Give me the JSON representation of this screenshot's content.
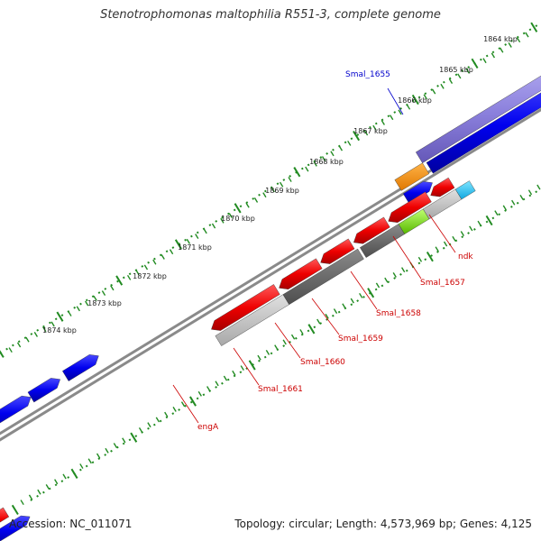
{
  "title": "Stenotrophomonas maltophilia R551-3, complete genome",
  "footer": {
    "accession_label": "Accession:",
    "accession": "NC_011071",
    "topology_label": "Topology:",
    "topology": "circular",
    "length_label": "Length:",
    "length": "4,573,969 bp",
    "genes_label": "Genes:",
    "genes": "4,125"
  },
  "colors": {
    "forward": "#0000ee",
    "reverse": "#ee0000",
    "label_forward": "#0000cc",
    "label_reverse": "#cc0000",
    "tick": "#228b22",
    "backbone": "#8a8a8a"
  },
  "tick_labels": [
    "1864 kbp",
    "1865 kbp",
    "1866 kbp",
    "1867 kbp",
    "1868 kbp",
    "1869 kbp",
    "1870 kbp",
    "1871 kbp",
    "1872 kbp",
    "1873 kbp",
    "1874 kbp"
  ],
  "gene_labels": [
    {
      "name": "Smal_1655",
      "strand": "forward"
    },
    {
      "name": "ndk",
      "strand": "reverse"
    },
    {
      "name": "Smal_1657",
      "strand": "reverse"
    },
    {
      "name": "Smal_1658",
      "strand": "reverse"
    },
    {
      "name": "Smal_1659",
      "strand": "reverse"
    },
    {
      "name": "Smal_1660",
      "strand": "reverse"
    },
    {
      "name": "Smal_1661",
      "strand": "reverse"
    },
    {
      "name": "engA",
      "strand": "reverse"
    }
  ]
}
